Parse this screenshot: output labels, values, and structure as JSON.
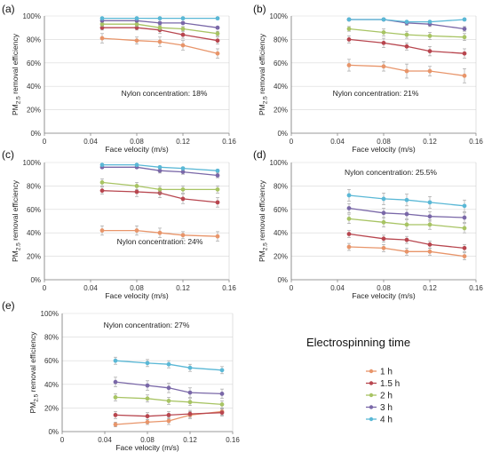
{
  "colors": {
    "1 h": "#e8956a",
    "1.5 h": "#b8464f",
    "2 h": "#a8c464",
    "3 h": "#7a68a8",
    "4 h": "#5ab8d6"
  },
  "legend": {
    "title": "Electrospinning time",
    "items": [
      "1 h",
      "1.5 h",
      "2 h",
      "3 h",
      "4 h"
    ]
  },
  "chart_data": [
    {
      "type": "line",
      "panel": "(a)",
      "annotation": "Nylon concentration: 18%",
      "xlabel": "Face velocity (m/s)",
      "ylabel": "PM2.5 removal efficiency",
      "xlim": [
        0,
        0.16
      ],
      "ylim": [
        0,
        100
      ],
      "x_ticks": [
        "0",
        "0.04",
        "0.08",
        "0.12",
        "0.16"
      ],
      "y_ticks": [
        "0%",
        "20%",
        "40%",
        "60%",
        "80%",
        "100%"
      ],
      "x": [
        0.05,
        0.08,
        0.1,
        0.12,
        0.15
      ],
      "series": [
        {
          "name": "1 h",
          "values": [
            81,
            79,
            78,
            75,
            68
          ],
          "err": [
            4,
            3,
            4,
            4,
            4
          ]
        },
        {
          "name": "1.5 h",
          "values": [
            90,
            90,
            88,
            84,
            79
          ],
          "err": [
            2,
            2,
            3,
            3,
            3
          ]
        },
        {
          "name": "2 h",
          "values": [
            93,
            93,
            90,
            89,
            85
          ],
          "err": [
            2,
            2,
            2,
            2,
            2
          ]
        },
        {
          "name": "3 h",
          "values": [
            96,
            96,
            94,
            94,
            90
          ],
          "err": [
            1,
            1,
            1,
            1,
            1
          ]
        },
        {
          "name": "4 h",
          "values": [
            98,
            98,
            98,
            98,
            98
          ],
          "err": [
            1,
            1,
            1,
            1,
            1
          ]
        }
      ]
    },
    {
      "type": "line",
      "panel": "(b)",
      "annotation": "Nylon concentration: 21%",
      "xlabel": "Face velocity (m/s)",
      "ylabel": "PM2.5 removal efficiency",
      "xlim": [
        0,
        0.16
      ],
      "ylim": [
        0,
        100
      ],
      "x_ticks": [
        "0",
        "0.04",
        "0.08",
        "0.12",
        "0.16"
      ],
      "y_ticks": [
        "0%",
        "20%",
        "40%",
        "60%",
        "80%",
        "100%"
      ],
      "x": [
        0.05,
        0.08,
        0.1,
        0.12,
        0.15
      ],
      "series": [
        {
          "name": "1 h",
          "values": [
            58,
            57,
            53,
            53,
            49
          ],
          "err": [
            5,
            4,
            6,
            4,
            6
          ]
        },
        {
          "name": "1.5 h",
          "values": [
            80,
            77,
            74,
            70,
            68
          ],
          "err": [
            3,
            4,
            3,
            4,
            4
          ]
        },
        {
          "name": "2 h",
          "values": [
            89,
            86,
            84,
            83,
            82
          ],
          "err": [
            2,
            3,
            3,
            3,
            3
          ]
        },
        {
          "name": "3 h",
          "values": [
            97,
            97,
            94,
            93,
            89
          ],
          "err": [
            1,
            1,
            2,
            2,
            2
          ]
        },
        {
          "name": "4 h",
          "values": [
            97,
            97,
            95,
            95,
            97
          ],
          "err": [
            1,
            1,
            1,
            1,
            1
          ]
        }
      ]
    },
    {
      "type": "line",
      "panel": "(c)",
      "annotation": "Nylon concentration: 24%",
      "xlabel": "Face velocity (m/s)",
      "ylabel": "PM2.5 removal efficiency",
      "xlim": [
        0,
        0.16
      ],
      "ylim": [
        0,
        100
      ],
      "x_ticks": [
        "0",
        "0.04",
        "0.08",
        "0.12",
        "0.16"
      ],
      "y_ticks": [
        "0%",
        "20%",
        "40%",
        "60%",
        "80%",
        "100%"
      ],
      "x": [
        0.05,
        0.08,
        0.1,
        0.12,
        0.15
      ],
      "series": [
        {
          "name": "1 h",
          "values": [
            42,
            42,
            40,
            38,
            37
          ],
          "err": [
            4,
            4,
            4,
            3,
            4
          ]
        },
        {
          "name": "1.5 h",
          "values": [
            76,
            75,
            74,
            69,
            66
          ],
          "err": [
            3,
            4,
            4,
            4,
            4
          ]
        },
        {
          "name": "2 h",
          "values": [
            83,
            80,
            77,
            77,
            77
          ],
          "err": [
            3,
            3,
            3,
            3,
            3
          ]
        },
        {
          "name": "3 h",
          "values": [
            96,
            96,
            93,
            92,
            89
          ],
          "err": [
            1,
            1,
            2,
            2,
            2
          ]
        },
        {
          "name": "4 h",
          "values": [
            98,
            98,
            96,
            95,
            93
          ],
          "err": [
            1,
            1,
            1,
            1,
            1
          ]
        }
      ]
    },
    {
      "type": "line",
      "panel": "(d)",
      "annotation": "Nylon concentration: 25.5%",
      "xlabel": "Face velocity (m/s)",
      "ylabel": "PM2.5 removal efficiency",
      "xlim": [
        0,
        0.16
      ],
      "ylim": [
        0,
        100
      ],
      "x_ticks": [
        "0",
        "0.04",
        "0.08",
        "0.12",
        "0.16"
      ],
      "y_ticks": [
        "0%",
        "20%",
        "40%",
        "60%",
        "80%",
        "100%"
      ],
      "x": [
        0.05,
        0.08,
        0.1,
        0.12,
        0.15
      ],
      "series": [
        {
          "name": "1 h",
          "values": [
            28,
            27,
            24,
            24,
            20
          ],
          "err": [
            3,
            3,
            3,
            3,
            3
          ]
        },
        {
          "name": "1.5 h",
          "values": [
            39,
            35,
            34,
            30,
            27
          ],
          "err": [
            3,
            3,
            3,
            3,
            3
          ]
        },
        {
          "name": "2 h",
          "values": [
            52,
            49,
            47,
            47,
            44
          ],
          "err": [
            4,
            4,
            4,
            4,
            4
          ]
        },
        {
          "name": "3 h",
          "values": [
            61,
            57,
            56,
            54,
            53
          ],
          "err": [
            4,
            4,
            4,
            4,
            4
          ]
        },
        {
          "name": "4 h",
          "values": [
            72,
            69,
            68,
            66,
            63
          ],
          "err": [
            5,
            5,
            5,
            5,
            5
          ]
        }
      ]
    },
    {
      "type": "line",
      "panel": "(e)",
      "annotation": "Nylon concentration: 27%",
      "xlabel": "Face velocity (m/s)",
      "ylabel": "PM2.5 removal efficiency",
      "xlim": [
        0,
        0.16
      ],
      "ylim": [
        0,
        100
      ],
      "x_ticks": [
        "0",
        "0.04",
        "0.08",
        "0.12",
        "0.16"
      ],
      "y_ticks": [
        "0%",
        "20%",
        "40%",
        "60%",
        "80%",
        "100%"
      ],
      "x": [
        0.05,
        0.08,
        0.1,
        0.12,
        0.15
      ],
      "series": [
        {
          "name": "1 h",
          "values": [
            6,
            8,
            9,
            14,
            17
          ],
          "err": [
            2,
            2,
            3,
            3,
            3
          ]
        },
        {
          "name": "1.5 h",
          "values": [
            14,
            13,
            14,
            15,
            16
          ],
          "err": [
            3,
            3,
            3,
            3,
            3
          ]
        },
        {
          "name": "2 h",
          "values": [
            29,
            28,
            26,
            25,
            23
          ],
          "err": [
            3,
            3,
            3,
            3,
            3
          ]
        },
        {
          "name": "3 h",
          "values": [
            42,
            39,
            37,
            33,
            32
          ],
          "err": [
            4,
            4,
            4,
            4,
            4
          ]
        },
        {
          "name": "4 h",
          "values": [
            60,
            58,
            57,
            54,
            52
          ],
          "err": [
            3,
            3,
            3,
            3,
            3
          ]
        }
      ]
    }
  ]
}
